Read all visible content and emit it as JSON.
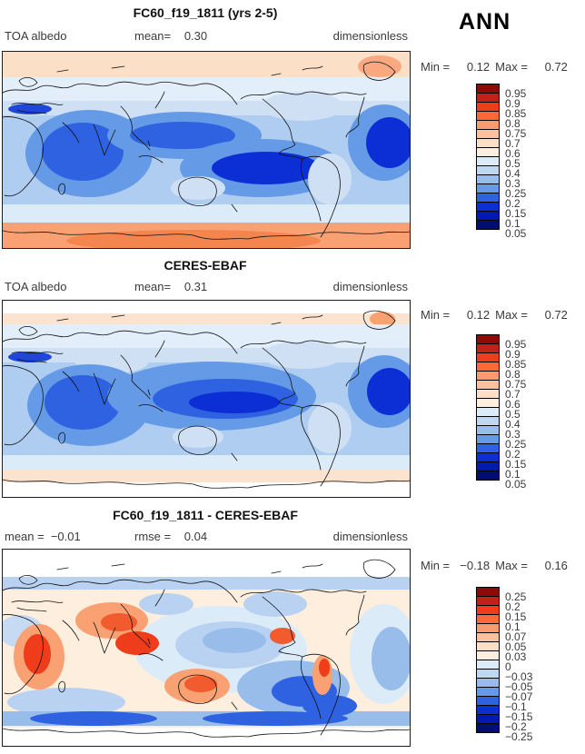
{
  "page": {
    "season_label": "ANN"
  },
  "palette_top_to_bottom": [
    "#8e0a09",
    "#c2201a",
    "#ef3d1c",
    "#fb6a35",
    "#f99a70",
    "#fbc09d",
    "#fddfc5",
    "#feeede",
    "#dcebf8",
    "#bed8f1",
    "#98bdea",
    "#659ae7",
    "#2f62e0",
    "#0c2fd5",
    "#0019ae",
    "#000e74"
  ],
  "panels": [
    {
      "title": "FC60_f19_1811 (yrs 2-5)",
      "header": {
        "left_key": "TOA albedo",
        "left_val": "",
        "center_key": "mean=",
        "center_val": "0.30",
        "right": "dimensionless"
      },
      "stats": {
        "min_key": "Min =",
        "min": "0.12",
        "max_key": "Max =",
        "max": "0.72"
      },
      "colorbar": {
        "ticks": [
          "0.95",
          "0.9",
          "0.85",
          "0.8",
          "0.75",
          "0.7",
          "0.6",
          "0.5",
          "0.4",
          "0.3",
          "0.25",
          "0.2",
          "0.15",
          "0.1",
          "0.05"
        ]
      }
    },
    {
      "title": "CERES-EBAF",
      "header": {
        "left_key": "TOA albedo",
        "left_val": "",
        "center_key": "mean=",
        "center_val": "0.31",
        "right": "dimensionless"
      },
      "stats": {
        "min_key": "Min =",
        "min": "0.12",
        "max_key": "Max =",
        "max": "0.72"
      },
      "colorbar": {
        "ticks": [
          "0.95",
          "0.9",
          "0.85",
          "0.8",
          "0.75",
          "0.7",
          "0.6",
          "0.5",
          "0.4",
          "0.3",
          "0.25",
          "0.2",
          "0.15",
          "0.1",
          "0.05"
        ]
      }
    },
    {
      "title": "FC60_f19_1811 - CERES-EBAF",
      "header": {
        "left_key": "mean =",
        "left_val": "−0.01",
        "center_key": "rmse =",
        "center_val": "0.04",
        "right": "dimensionless"
      },
      "stats": {
        "min_key": "Min =",
        "min": "−0.18",
        "max_key": "Max =",
        "max": "0.16"
      },
      "colorbar": {
        "ticks": [
          "0.25",
          "0.2",
          "0.15",
          "0.1",
          "0.07",
          "0.05",
          "0.03",
          "0",
          "−0.03",
          "−0.05",
          "−0.07",
          "−0.1",
          "−0.15",
          "−0.2",
          "−0.25"
        ]
      }
    }
  ],
  "chart_data": [
    {
      "type": "heatmap",
      "projection": "global cylindrical equidistant map, Pacific-centered, filled contours with coastlines",
      "title": "FC60_f19_1811 (yrs 2-5)",
      "variable": "TOA albedo",
      "units": "dimensionless",
      "season": "ANN",
      "mean": 0.3,
      "min": 0.12,
      "max": 0.72,
      "contour_levels": [
        0.05,
        0.1,
        0.15,
        0.2,
        0.25,
        0.3,
        0.4,
        0.5,
        0.6,
        0.7,
        0.75,
        0.8,
        0.85,
        0.9,
        0.95
      ],
      "palette_top_to_bottom": [
        "#8e0a09",
        "#c2201a",
        "#ef3d1c",
        "#fb6a35",
        "#f99a70",
        "#fbc09d",
        "#fddfc5",
        "#feeede",
        "#dcebf8",
        "#bed8f1",
        "#98bdea",
        "#659ae7",
        "#2f62e0",
        "#0c2fd5",
        "#0019ae",
        "#000e74"
      ],
      "pattern_summary": "High albedo (0.5-0.7, warm colors) over the Arctic strip, Greenland and Antarctica; low albedo (0.1-0.2, dark blue) over subtropical oceans (Indian Ocean, west/central Pacific, South Pacific, Atlantic, Mediterranean); light blue (0.3-0.4) over mid-latitudes and continents."
    },
    {
      "type": "heatmap",
      "projection": "global cylindrical equidistant map, Pacific-centered, filled contours with coastlines",
      "title": "CERES-EBAF",
      "variable": "TOA albedo",
      "units": "dimensionless",
      "season": "ANN",
      "mean": 0.31,
      "min": 0.12,
      "max": 0.72,
      "contour_levels": [
        0.05,
        0.1,
        0.15,
        0.2,
        0.25,
        0.3,
        0.4,
        0.5,
        0.6,
        0.7,
        0.75,
        0.8,
        0.85,
        0.9,
        0.95
      ],
      "palette_top_to_bottom": [
        "#8e0a09",
        "#c2201a",
        "#ef3d1c",
        "#fb6a35",
        "#f99a70",
        "#fbc09d",
        "#fddfc5",
        "#feeede",
        "#dcebf8",
        "#bed8f1",
        "#98bdea",
        "#659ae7",
        "#2f62e0",
        "#0c2fd5",
        "#0019ae",
        "#000e74"
      ],
      "pattern_summary": "Observed TOA albedo: white/light peach polar caps, darkest blue minimum (0.1-0.15) over equatorial central Pacific and subtropical ocean basins, light blue mid-latitude bands."
    },
    {
      "type": "heatmap",
      "projection": "global cylindrical equidistant map, Pacific-centered, filled contour difference with coastlines",
      "title": "FC60_f19_1811 - CERES-EBAF",
      "variable": "TOA albedo difference (model minus observations)",
      "units": "dimensionless",
      "season": "ANN",
      "mean": -0.01,
      "rmse": 0.04,
      "min": -0.18,
      "max": 0.16,
      "contour_levels": [
        -0.25,
        -0.2,
        -0.15,
        -0.1,
        -0.07,
        -0.05,
        -0.03,
        0,
        0.03,
        0.05,
        0.07,
        0.1,
        0.15,
        0.2,
        0.25
      ],
      "palette_top_to_bottom": [
        "#8e0a09",
        "#c2201a",
        "#ef3d1c",
        "#fb6a35",
        "#f99a70",
        "#fbc09d",
        "#fddfc5",
        "#feeede",
        "#dcebf8",
        "#bed8f1",
        "#98bdea",
        "#659ae7",
        "#2f62e0",
        "#0c2fd5",
        "#0019ae",
        "#000e74"
      ],
      "pattern_summary": "Positive biases (red, +0.05 to +0.15) over central Africa, South/East Asia, Australia and western South America; negative biases (blue, −0.05 to −0.15) over subtropical and Southern Ocean stratocumulus regions and a band near 60S; near-zero (white) over poles."
    }
  ]
}
